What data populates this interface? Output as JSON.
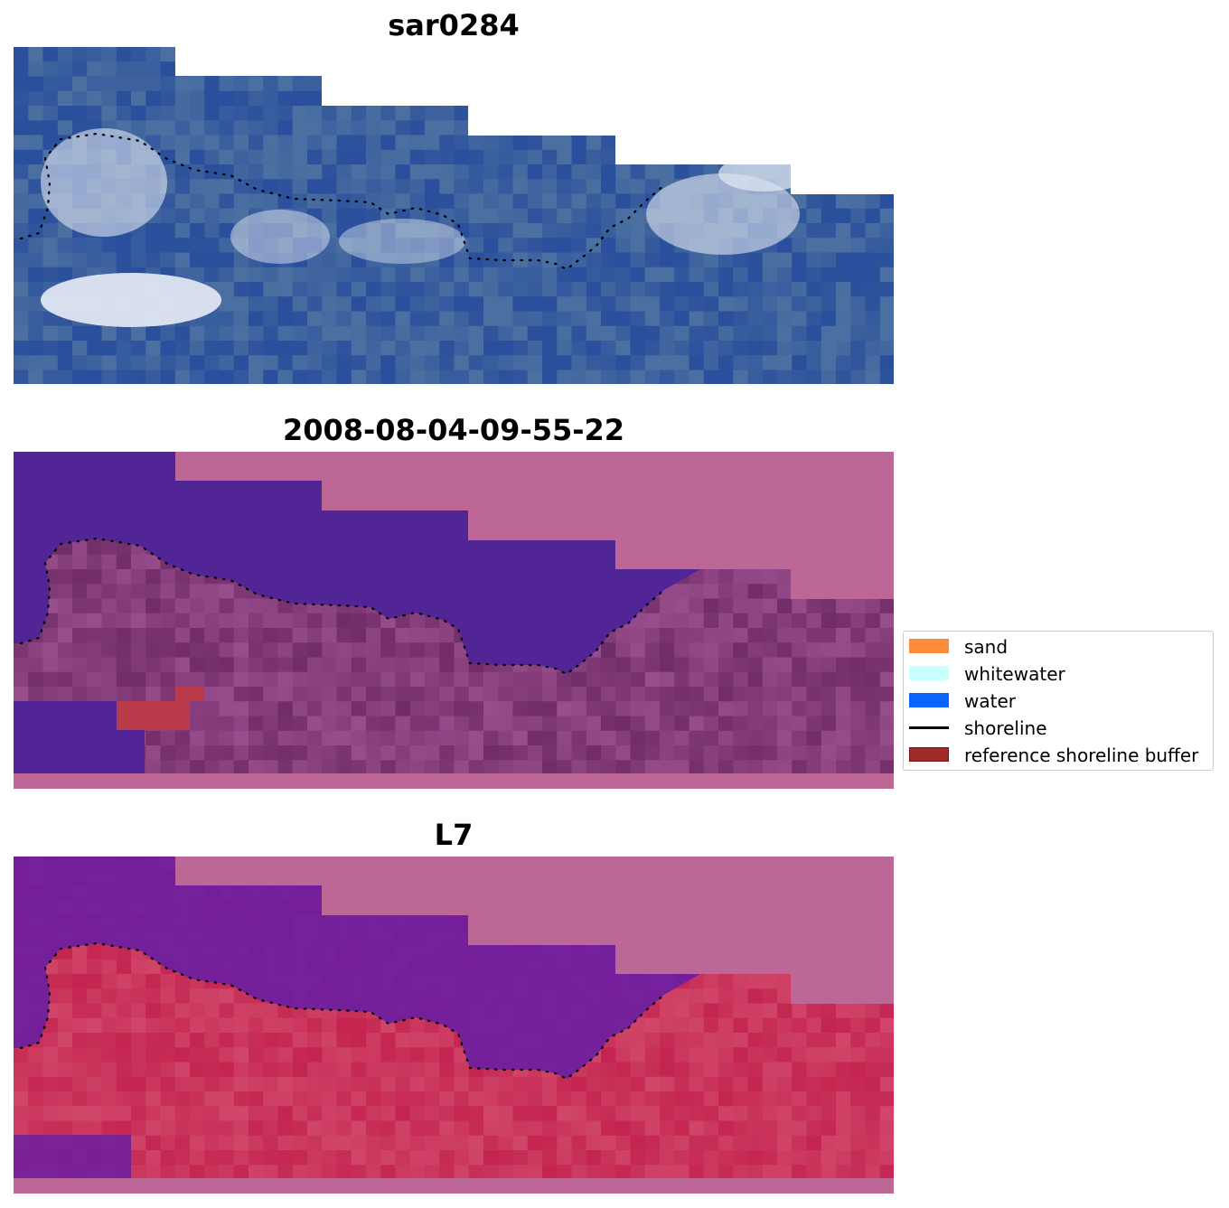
{
  "figure": {
    "panels": [
      {
        "key": "rgb",
        "title": "sar0284"
      },
      {
        "key": "cls",
        "title": "2008-08-04-09-55-22"
      },
      {
        "key": "mndwi",
        "title": "L7"
      }
    ]
  },
  "legend": {
    "items": [
      {
        "label": "sand",
        "kind": "patch",
        "color": "#ff8c3c"
      },
      {
        "label": "whitewater",
        "kind": "patch",
        "color": "#c8ffff"
      },
      {
        "label": "water",
        "kind": "patch",
        "color": "#0a64ff"
      },
      {
        "label": "shoreline",
        "kind": "line",
        "color": "#000000"
      },
      {
        "label": "reference shoreline buffer",
        "kind": "patch",
        "color": "#9e2a2a",
        "edge": "#7a1515"
      }
    ]
  },
  "colors": {
    "nodata": "#bd6796",
    "cls_water": "#522596",
    "cls_land": "#6e2a66",
    "cls_land_light": "#9a4f8e",
    "cls_buffer": "#b93a48",
    "rgb_deep": "#2a4f9c",
    "rgb_mid": "#3f64a8",
    "rgb_land": "#4a6fa0",
    "rgb_cloud": "#dfe6f2",
    "mndwi_water": "#6c1ea0",
    "mndwi_land": "#c2204c",
    "shoreline": "#000000"
  }
}
